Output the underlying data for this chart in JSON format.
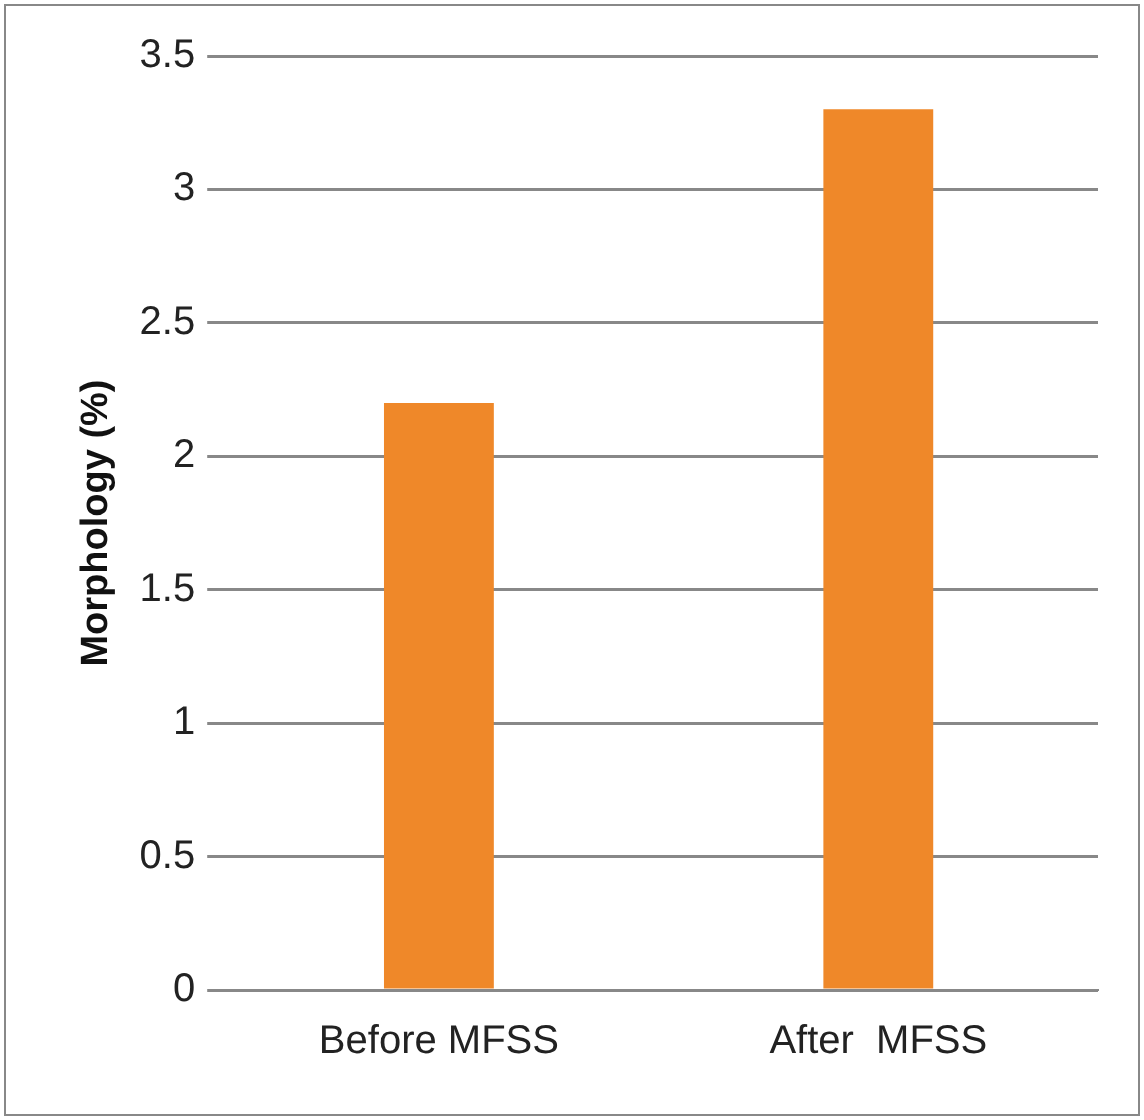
{
  "chart_data": {
    "type": "bar",
    "ylabel": "Morphology (%)",
    "categories": [
      "Before MFSS",
      "After  MFSS"
    ],
    "series": [
      {
        "color": "#ef8829",
        "values": [
          2.2,
          3.3
        ]
      }
    ],
    "ylim": [
      0,
      3.5
    ],
    "yticks": [
      0,
      0.5,
      1,
      1.5,
      2,
      2.5,
      3,
      3.5
    ],
    "grid": "y",
    "legend": false
  }
}
